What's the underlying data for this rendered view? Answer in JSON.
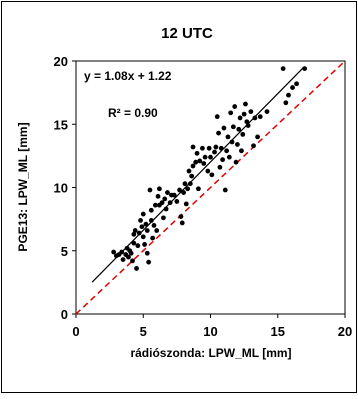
{
  "chart_data": {
    "type": "scatter",
    "title": "12 UTC",
    "xlabel": "rádiószonda: LPW_ML [mm]",
    "ylabel": "PGE13: LPW_ML [mm]",
    "xlim": [
      0,
      20
    ],
    "ylim": [
      0,
      20
    ],
    "xticks": [
      0,
      5,
      10,
      15,
      20
    ],
    "yticks": [
      0,
      5,
      10,
      15,
      20
    ],
    "equation": "y = 1.08x + 1.22",
    "r2": "R² = 0.90",
    "trend": {
      "slope": 1.08,
      "intercept": 1.22,
      "x_range": [
        1.2,
        16.9
      ],
      "color": "#000000"
    },
    "identity": {
      "color": "#e00000",
      "style": "dashed"
    },
    "point_color": "#000000",
    "points": [
      [
        2.8,
        4.9
      ],
      [
        3.0,
        4.6
      ],
      [
        3.2,
        4.7
      ],
      [
        3.4,
        4.9
      ],
      [
        3.5,
        4.3
      ],
      [
        3.7,
        4.7
      ],
      [
        3.8,
        5.2
      ],
      [
        3.9,
        4.5
      ],
      [
        4.0,
        5.0
      ],
      [
        4.1,
        4.8
      ],
      [
        4.2,
        4.2
      ],
      [
        4.3,
        5.6
      ],
      [
        4.3,
        6.3
      ],
      [
        4.4,
        6.6
      ],
      [
        4.5,
        3.6
      ],
      [
        4.6,
        5.4
      ],
      [
        4.7,
        6.4
      ],
      [
        4.8,
        7.4
      ],
      [
        4.9,
        6.9
      ],
      [
        5.0,
        7.9
      ],
      [
        5.0,
        6.1
      ],
      [
        5.1,
        5.5
      ],
      [
        5.2,
        7.1
      ],
      [
        5.3,
        4.8
      ],
      [
        5.3,
        6.6
      ],
      [
        5.4,
        4.1
      ],
      [
        5.5,
        9.8
      ],
      [
        5.6,
        8.2
      ],
      [
        5.6,
        7.4
      ],
      [
        5.7,
        6.0
      ],
      [
        5.8,
        7.0
      ],
      [
        5.9,
        8.6
      ],
      [
        6.0,
        6.6
      ],
      [
        6.1,
        9.3
      ],
      [
        6.2,
        9.9
      ],
      [
        6.2,
        8.6
      ],
      [
        6.4,
        8.8
      ],
      [
        6.5,
        7.6
      ],
      [
        6.6,
        9.1
      ],
      [
        6.7,
        8.3
      ],
      [
        6.8,
        9.6
      ],
      [
        7.0,
        8.8
      ],
      [
        7.1,
        9.4
      ],
      [
        7.3,
        9.4
      ],
      [
        7.5,
        8.9
      ],
      [
        7.7,
        9.8
      ],
      [
        7.8,
        7.7
      ],
      [
        7.9,
        7.2
      ],
      [
        8.0,
        9.6
      ],
      [
        8.1,
        10.3
      ],
      [
        8.2,
        8.7
      ],
      [
        8.3,
        9.9
      ],
      [
        8.4,
        11.3
      ],
      [
        8.5,
        10.3
      ],
      [
        8.6,
        10.9
      ],
      [
        8.7,
        11.7
      ],
      [
        8.7,
        13.2
      ],
      [
        8.9,
        12.0
      ],
      [
        9.0,
        12.7
      ],
      [
        9.1,
        9.9
      ],
      [
        9.2,
        12.1
      ],
      [
        9.4,
        13.1
      ],
      [
        9.5,
        11.9
      ],
      [
        9.6,
        12.4
      ],
      [
        9.8,
        11.3
      ],
      [
        9.9,
        13.1
      ],
      [
        10.0,
        12.4
      ],
      [
        10.1,
        11.0
      ],
      [
        10.3,
        12.8
      ],
      [
        10.4,
        13.2
      ],
      [
        10.5,
        15.6
      ],
      [
        10.6,
        14.3
      ],
      [
        10.7,
        11.6
      ],
      [
        10.8,
        13.1
      ],
      [
        10.9,
        12.2
      ],
      [
        11.0,
        14.7
      ],
      [
        11.1,
        9.8
      ],
      [
        11.2,
        12.9
      ],
      [
        11.3,
        14.0
      ],
      [
        11.4,
        12.4
      ],
      [
        11.5,
        15.9
      ],
      [
        11.6,
        13.6
      ],
      [
        11.7,
        14.8
      ],
      [
        11.8,
        16.4
      ],
      [
        11.9,
        12.0
      ],
      [
        12.0,
        13.4
      ],
      [
        12.1,
        14.6
      ],
      [
        12.2,
        15.5
      ],
      [
        12.3,
        12.9
      ],
      [
        12.4,
        14.2
      ],
      [
        12.5,
        15.8
      ],
      [
        12.6,
        16.6
      ],
      [
        12.7,
        15.2
      ],
      [
        12.8,
        14.9
      ],
      [
        13.0,
        16.0
      ],
      [
        13.2,
        13.3
      ],
      [
        13.3,
        15.5
      ],
      [
        13.5,
        14.0
      ],
      [
        13.7,
        15.6
      ],
      [
        14.2,
        16.0
      ],
      [
        15.4,
        19.4
      ],
      [
        15.6,
        16.7
      ],
      [
        15.8,
        17.3
      ],
      [
        16.1,
        17.9
      ],
      [
        16.4,
        18.2
      ],
      [
        17.0,
        19.4
      ]
    ]
  }
}
